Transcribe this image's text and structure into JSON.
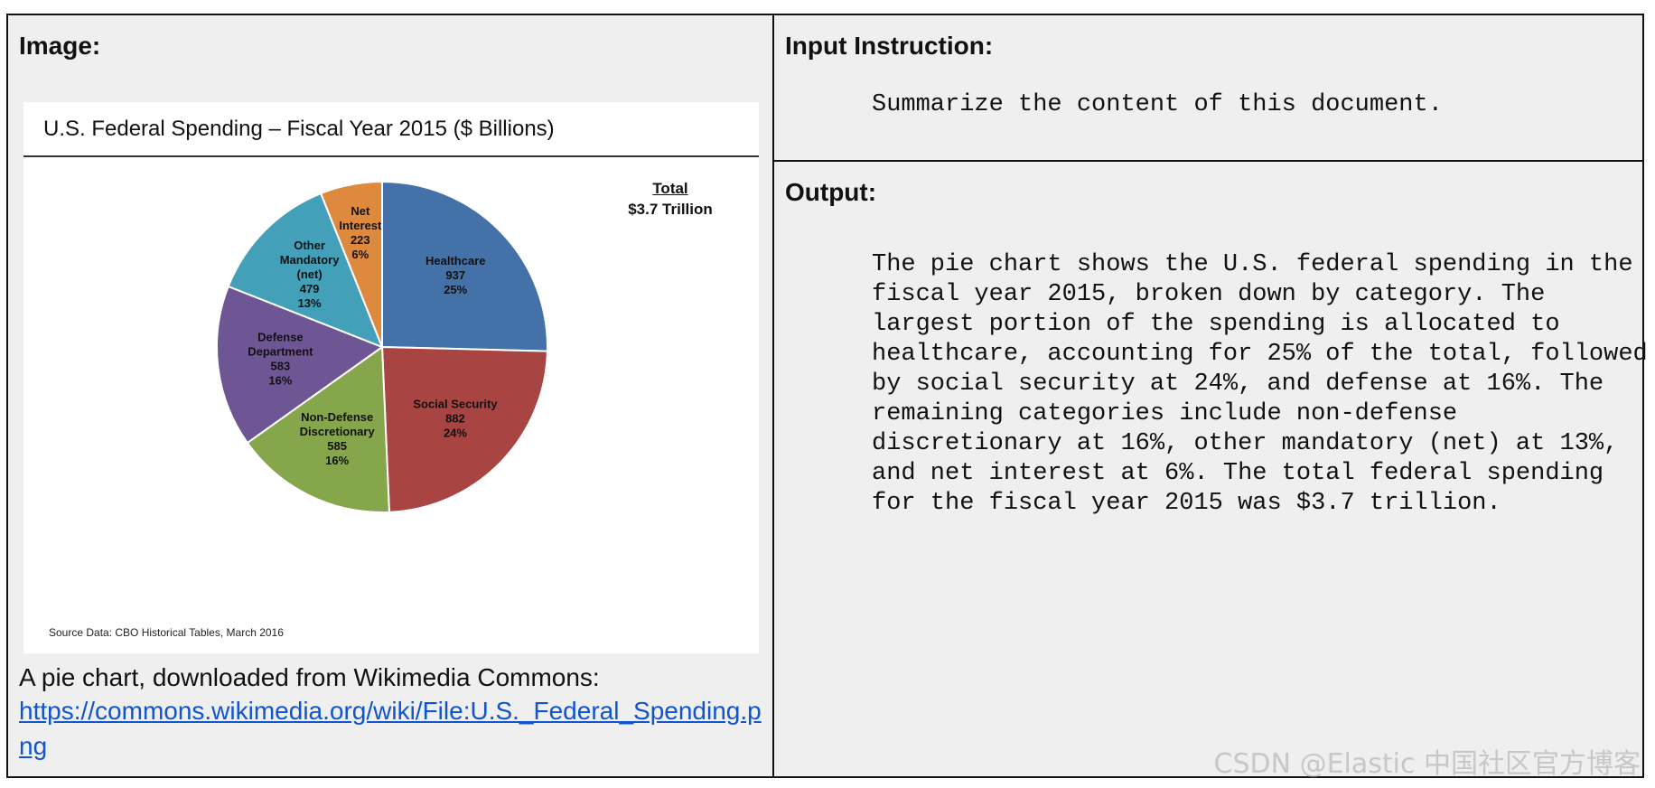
{
  "left_cell": {
    "heading": "Image:",
    "caption": "A pie chart, downloaded from Wikimedia Commons:",
    "link": "https://commons.wikimedia.org/wiki/File:U.S._Federal_Spending.png"
  },
  "right_top": {
    "heading": "Input Instruction:",
    "instruction": "Summarize the content of this document."
  },
  "right_bottom": {
    "heading": "Output:",
    "text": "The pie chart shows the U.S. federal spending in the fiscal year 2015, broken down by category. The largest portion of the spending is allocated to healthcare, accounting for 25% of the total, followed by social security at 24%, and defense at 16%. The remaining categories include non-defense discretionary at 16%, other mandatory (net) at 13%, and net interest at 6%. The total federal spending for the fiscal year 2015 was $3.7 trillion."
  },
  "watermark": "CSDN @Elastic 中国社区官方博客",
  "chart_data": {
    "type": "pie",
    "title": "U.S. Federal Spending – Fiscal Year 2015 ($ Billions)",
    "total_label": "Total",
    "total_value": "$3.7 Trillion",
    "source": "Source Data:  CBO Historical Tables, March 2016",
    "slices": [
      {
        "lines": [
          "Healthcare",
          "937",
          "25%"
        ],
        "value": 937,
        "color": "#4472a8"
      },
      {
        "lines": [
          "Social Security",
          "882",
          "24%"
        ],
        "value": 882,
        "color": "#a84441"
      },
      {
        "lines": [
          "Non-Defense",
          "Discretionary",
          "585",
          "16%"
        ],
        "value": 585,
        "color": "#86a64c"
      },
      {
        "lines": [
          "Defense",
          "Department",
          "583",
          "16%"
        ],
        "value": 583,
        "color": "#6e5594"
      },
      {
        "lines": [
          "Other",
          "Mandatory",
          "(net)",
          "479",
          "13%"
        ],
        "value": 479,
        "color": "#43a0b8"
      },
      {
        "lines": [
          "Net",
          "Interest",
          "223",
          "6%"
        ],
        "value": 223,
        "color": "#de8a3e"
      }
    ]
  }
}
